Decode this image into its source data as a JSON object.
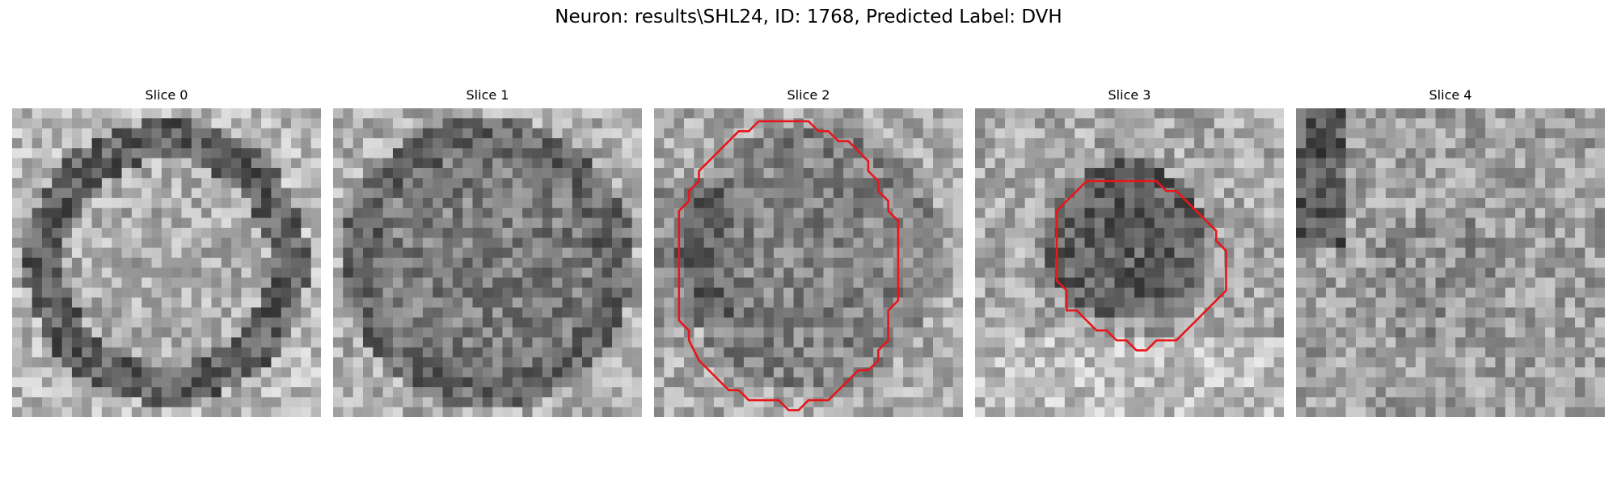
{
  "figure": {
    "title": "Neuron: results\\SHL24, ID: 1768, Predicted Label: DVH"
  },
  "panels": [
    {
      "title": "Slice 0",
      "contour": false
    },
    {
      "title": "Slice 1",
      "contour": false
    },
    {
      "title": "Slice 2",
      "contour": true
    },
    {
      "title": "Slice 3",
      "contour": true
    },
    {
      "title": "Slice 4",
      "contour": false
    }
  ],
  "colors": {
    "contour": "#e8161b",
    "background": "#ffffff"
  },
  "grid_size": 31
}
